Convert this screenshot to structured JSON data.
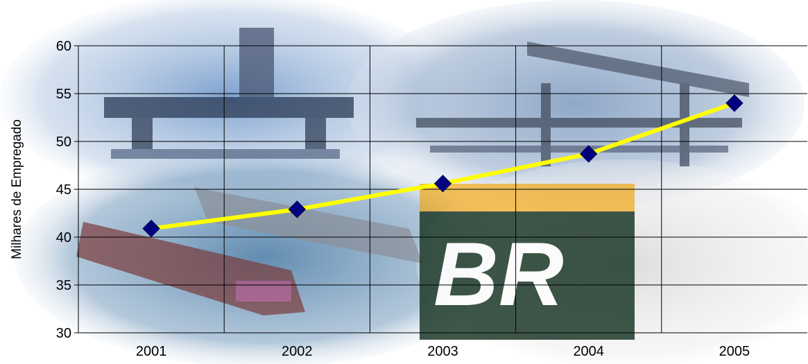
{
  "chart_data": {
    "type": "line",
    "title": "",
    "xlabel": "",
    "ylabel": "Milhares de Empregado",
    "categories": [
      "2001",
      "2002",
      "2003",
      "2004",
      "2005"
    ],
    "series": [
      {
        "values": [
          40.9,
          42.9,
          45.6,
          48.7,
          54.0
        ]
      }
    ],
    "ylim": [
      30,
      60
    ],
    "yticks": [
      "30",
      "35",
      "40",
      "45",
      "50",
      "55",
      "60"
    ],
    "grid": true,
    "legend": "none",
    "colors": {
      "line": "#ffff00",
      "marker": "#000080",
      "grid": "#000000"
    }
  }
}
